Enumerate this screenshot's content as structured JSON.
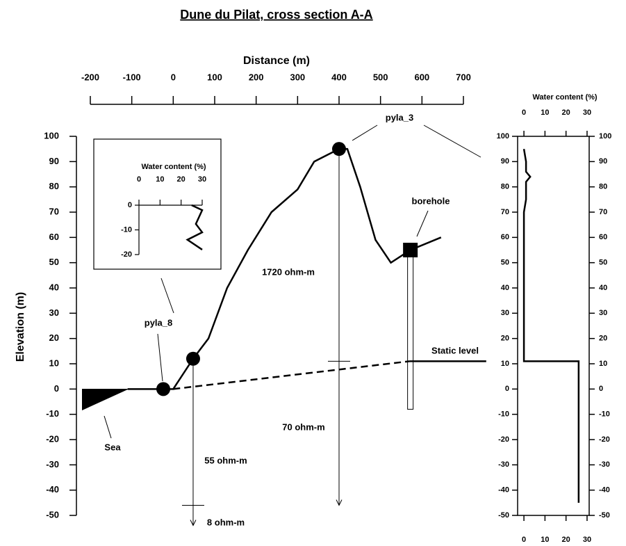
{
  "chart_data": [
    {
      "type": "line",
      "title": "Dune du Pilat, cross section A-A",
      "xlabel": "Distance (m)",
      "ylabel": "Elevation (m)",
      "xlim": [
        -200,
        700
      ],
      "ylim": [
        -50,
        100
      ],
      "xticks": [
        -200,
        -100,
        0,
        100,
        200,
        300,
        400,
        500,
        600,
        700
      ],
      "yticks": [
        -50,
        -40,
        -30,
        -20,
        -10,
        0,
        10,
        20,
        30,
        40,
        50,
        60,
        70,
        80,
        90,
        100
      ],
      "series": [
        {
          "x": [
            -110,
            0,
            48,
            85,
            130,
            180,
            237,
            300,
            340,
            400,
            420,
            451,
            488,
            525,
            572,
            646
          ],
          "values": [
            0,
            0,
            12,
            20,
            40,
            55,
            70,
            79,
            90,
            95,
            95,
            80,
            59,
            50,
            55,
            60
          ],
          "color": "#000000"
        },
        {
          "x": [
            0,
            570
          ],
          "values": [
            0,
            11
          ],
          "color": "#000000",
          "dash": true
        },
        {
          "x": [
            570,
            755
          ],
          "values": [
            11,
            11
          ],
          "color": "#000000"
        }
      ],
      "markers": [
        {
          "label": "pyla_8",
          "x": -24,
          "y": 0,
          "shape": "circle"
        },
        {
          "x": 48,
          "y": 12,
          "shape": "circle"
        },
        {
          "label": "pyla_3",
          "x": 400,
          "y": 95,
          "shape": "circle"
        },
        {
          "label": "borehole",
          "x": 572,
          "y": 55,
          "shape": "square"
        }
      ],
      "soundings": [
        {
          "x": 48,
          "top": 12,
          "bottom": -54,
          "boundary": -46,
          "layers": [
            "55 ohm-m",
            "8 ohm-m"
          ]
        },
        {
          "x": 400,
          "top": 95,
          "bottom": -46,
          "boundary": 11,
          "layers": [
            "1720 ohm-m",
            "70 ohm-m"
          ]
        }
      ],
      "borehole": {
        "x": 572,
        "top": 55,
        "bottom": -8
      },
      "annotations": [
        "Static level",
        "Sea"
      ]
    },
    {
      "type": "line",
      "xlabel": "Water content (%)",
      "xlim": [
        -3,
        31
      ],
      "ylim": [
        -50,
        100
      ],
      "xticks": [
        0,
        10,
        20,
        30
      ],
      "yticks": [
        -50,
        -40,
        -30,
        -20,
        -10,
        0,
        10,
        20,
        30,
        40,
        50,
        60,
        70,
        80,
        90,
        100
      ],
      "series": [
        {
          "x": [
            0,
            1,
            1,
            3,
            1,
            1,
            0,
            0,
            26,
            26
          ],
          "values": [
            95,
            90,
            86,
            84,
            82,
            75,
            70,
            11,
            11,
            -45
          ],
          "color": "#000000"
        }
      ]
    },
    {
      "type": "line",
      "xlabel": "Water content (%)",
      "xlim": [
        0,
        30
      ],
      "ylim": [
        -20,
        0
      ],
      "xticks": [
        0,
        10,
        20,
        30
      ],
      "yticks": [
        -20,
        -10,
        0
      ],
      "series": [
        {
          "x": [
            25,
            30,
            27,
            30,
            23,
            30
          ],
          "values": [
            0,
            -2,
            -7.6,
            -11,
            -14,
            -18
          ],
          "color": "#000000"
        }
      ]
    }
  ]
}
